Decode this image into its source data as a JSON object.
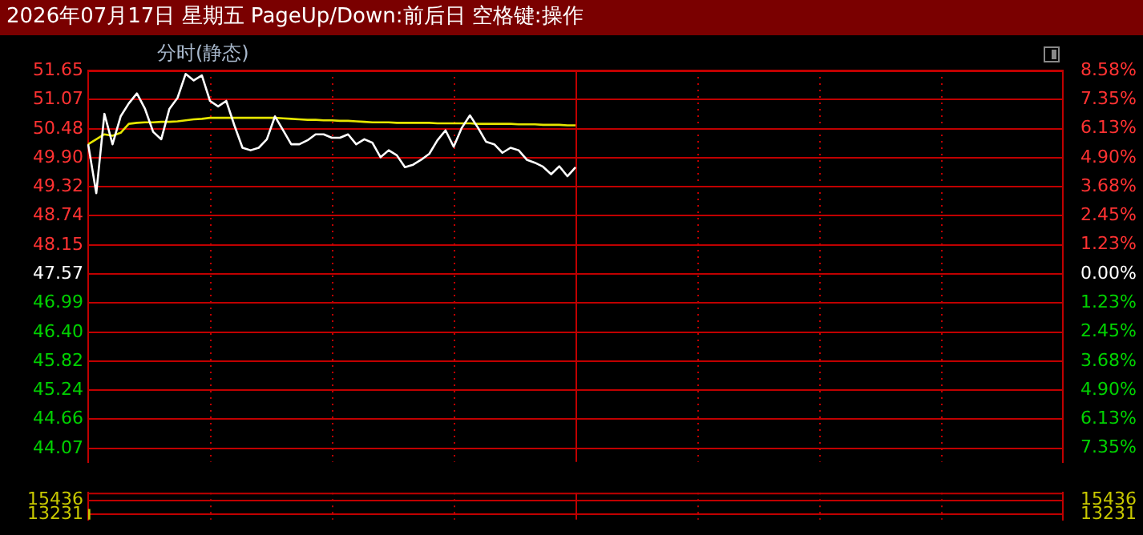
{
  "chart_data": [
    {
      "type": "line",
      "title": "2026年07月17日 星期五 PageUp/Down:前后日 空格键:操作",
      "subtitle": "分时(静态)",
      "categories": [
        null,
        null,
        null,
        null,
        null,
        null,
        null,
        null,
        null,
        null,
        null,
        null,
        null,
        null,
        null,
        null,
        null,
        null,
        null,
        null,
        null,
        null,
        null,
        null,
        null,
        null,
        null,
        null,
        null,
        null,
        null,
        null,
        null,
        null,
        null,
        null,
        null,
        null,
        null,
        null,
        null,
        null,
        null,
        null,
        null,
        null,
        null,
        null,
        null,
        null,
        null,
        null,
        null,
        null,
        null,
        null,
        null,
        null,
        null,
        null,
        null,
        null,
        null,
        null,
        null,
        null,
        null,
        null,
        null,
        null,
        null,
        null,
        null,
        null,
        null,
        null,
        null,
        null,
        null,
        null,
        null,
        null,
        null,
        null,
        null,
        null,
        null,
        null,
        null,
        null,
        null,
        null,
        null,
        null,
        null,
        null,
        null,
        null,
        null,
        null,
        null,
        null,
        null,
        null,
        null,
        null,
        null,
        null,
        null,
        null,
        null,
        null,
        null,
        null,
        null,
        null,
        null,
        null,
        null,
        null,
        null
      ],
      "ylim": [
        43.8,
        51.65
      ],
      "yticks": [
        {
          "value": 51.65,
          "label": "51.65"
        },
        {
          "value": 51.07,
          "label": "51.07"
        },
        {
          "value": 50.48,
          "label": "50.48"
        },
        {
          "value": 49.9,
          "label": "49.90"
        },
        {
          "value": 49.32,
          "label": "49.32"
        },
        {
          "value": 48.74,
          "label": "48.74"
        },
        {
          "value": 48.15,
          "label": "48.15"
        },
        {
          "value": 47.57,
          "label": "47.57"
        },
        {
          "value": 46.99,
          "label": "46.99"
        },
        {
          "value": 46.4,
          "label": "46.40"
        },
        {
          "value": 45.82,
          "label": "45.82"
        },
        {
          "value": 45.24,
          "label": "45.24"
        },
        {
          "value": 44.66,
          "label": "44.66"
        },
        {
          "value": 44.07,
          "label": "44.07"
        }
      ],
      "y2lim": [
        -7.93,
        8.58
      ],
      "y2ticks": [
        {
          "value": 8.58,
          "label": "8.58%"
        },
        {
          "value": 7.35,
          "label": "7.35%"
        },
        {
          "value": 6.13,
          "label": "6.13%"
        },
        {
          "value": 4.9,
          "label": "4.90%"
        },
        {
          "value": 3.68,
          "label": "3.68%"
        },
        {
          "value": 2.45,
          "label": "2.45%"
        },
        {
          "value": 1.23,
          "label": "1.23%"
        },
        {
          "value": 0,
          "label": "0.00%"
        },
        {
          "value": -1.23,
          "label": "1.23%"
        },
        {
          "value": -2.45,
          "label": "2.45%"
        },
        {
          "value": -3.68,
          "label": "3.68%"
        },
        {
          "value": -4.9,
          "label": "4.90%"
        },
        {
          "value": -6.13,
          "label": "6.13%"
        },
        {
          "value": -7.35,
          "label": "7.35%"
        }
      ],
      "tick_labels": "y",
      "grid": true,
      "series": [
        {
          "color": "#ffffff",
          "values": [
            50.17,
            49.19,
            50.78,
            50.17,
            50.73,
            50.99,
            51.19,
            50.88,
            50.42,
            50.27,
            50.88,
            51.1,
            51.58,
            51.45,
            51.55,
            51.04,
            50.93,
            51.04,
            50.55,
            50.1,
            50.05,
            50.1,
            50.27,
            50.73,
            50.45,
            50.17,
            50.17,
            50.25,
            50.37,
            50.37,
            50.3,
            50.3,
            50.37,
            50.17,
            50.27,
            50.2,
            49.91,
            50.05,
            49.95,
            49.71,
            49.76,
            49.86,
            49.98,
            50.25,
            50.45,
            50.12,
            50.5,
            50.75,
            50.5,
            50.22,
            50.17,
            50.0,
            50.1,
            50.05,
            49.86,
            49.8,
            49.72,
            49.57,
            49.73,
            49.53,
            49.71,
            null,
            null,
            null,
            null,
            null,
            null,
            null,
            null,
            null,
            null,
            null,
            null,
            null,
            null,
            null,
            null,
            null,
            null,
            null,
            null,
            null,
            null,
            null,
            null,
            null,
            null,
            null,
            null,
            null,
            null,
            null,
            null,
            null,
            null,
            null,
            null,
            null,
            null,
            null,
            null,
            null,
            null,
            null,
            null,
            null,
            null,
            null,
            null,
            null,
            null,
            null,
            null,
            null,
            null,
            null,
            null,
            null,
            null,
            null,
            null
          ]
        },
        {
          "color": "#e6e600",
          "values": [
            50.17,
            50.27,
            50.37,
            50.34,
            50.4,
            50.58,
            50.6,
            50.61,
            50.61,
            50.62,
            50.62,
            50.63,
            50.65,
            50.67,
            50.68,
            50.7,
            50.7,
            50.7,
            50.7,
            50.7,
            50.7,
            50.7,
            50.7,
            50.7,
            50.69,
            50.68,
            50.67,
            50.66,
            50.66,
            50.65,
            50.65,
            50.64,
            50.64,
            50.63,
            50.62,
            50.61,
            50.61,
            50.61,
            50.6,
            50.6,
            50.6,
            50.6,
            50.6,
            50.59,
            50.59,
            50.59,
            50.59,
            50.59,
            50.58,
            50.58,
            50.58,
            50.58,
            50.58,
            50.57,
            50.57,
            50.57,
            50.56,
            50.56,
            50.56,
            50.55,
            50.55,
            null,
            null,
            null,
            null,
            null,
            null,
            null,
            null,
            null,
            null,
            null,
            null,
            null,
            null,
            null,
            null,
            null,
            null,
            null,
            null,
            null,
            null,
            null,
            null,
            null,
            null,
            null,
            null,
            null,
            null,
            null,
            null,
            null,
            null,
            null,
            null,
            null,
            null,
            null,
            null,
            null,
            null,
            null,
            null,
            null,
            null,
            null,
            null,
            null,
            null,
            null,
            null,
            null,
            null,
            null,
            null,
            null,
            null,
            null,
            null
          ]
        }
      ]
    },
    {
      "type": "bar",
      "categories": [
        null,
        null,
        null,
        null,
        null,
        null,
        null,
        null,
        null,
        null,
        null,
        null,
        null,
        null,
        null,
        null,
        null,
        null,
        null,
        null,
        null,
        null,
        null,
        null,
        null,
        null,
        null,
        null,
        null,
        null,
        null,
        null,
        null,
        null,
        null,
        null,
        null,
        null,
        null,
        null,
        null,
        null,
        null,
        null,
        null,
        null,
        null,
        null,
        null,
        null,
        null,
        null,
        null,
        null,
        null,
        null,
        null,
        null,
        null,
        null,
        null,
        null,
        null,
        null,
        null,
        null,
        null,
        null,
        null,
        null,
        null,
        null,
        null,
        null,
        null,
        null,
        null,
        null,
        null,
        null,
        null,
        null,
        null,
        null,
        null,
        null,
        null,
        null,
        null,
        null,
        null,
        null,
        null,
        null,
        null,
        null,
        null,
        null,
        null,
        null,
        null,
        null,
        null,
        null,
        null,
        null,
        null,
        null,
        null,
        null,
        null,
        null,
        null,
        null,
        null,
        null,
        null,
        null,
        null,
        null,
        null
      ],
      "ylim": [
        12420,
        16600
      ],
      "yticks": [
        15436,
        13231
      ],
      "y2lim": [
        12420,
        16600
      ],
      "y2ticks": [
        15436,
        13231
      ],
      "tick_labels": "y",
      "grid": true,
      "values": [
        14000,
        null,
        null,
        null,
        null,
        null,
        null,
        null,
        null,
        null,
        null,
        null,
        null,
        null,
        null,
        null,
        null,
        null,
        null,
        null,
        null,
        null,
        null,
        null,
        null,
        null,
        null,
        null,
        null,
        null,
        null,
        null,
        null,
        null,
        null,
        null,
        null,
        null,
        null,
        null,
        null,
        null,
        null,
        null,
        null,
        null,
        null,
        null,
        null,
        null,
        null,
        null,
        null,
        null,
        null,
        null,
        null,
        null,
        null,
        null,
        null,
        null,
        null,
        null,
        null,
        null,
        null,
        null,
        null,
        null,
        null,
        null,
        null,
        null,
        null,
        null,
        null,
        null,
        null,
        null,
        null,
        null,
        null,
        null,
        null,
        null,
        null,
        null,
        null,
        null,
        null,
        null,
        null,
        null,
        null,
        null,
        null,
        null,
        null,
        null,
        null,
        null,
        null,
        null,
        null,
        null,
        null,
        null,
        null,
        null,
        null,
        null,
        null,
        null,
        null,
        null,
        null,
        null,
        null,
        null,
        null
      ],
      "color": "#c8c800"
    }
  ]
}
